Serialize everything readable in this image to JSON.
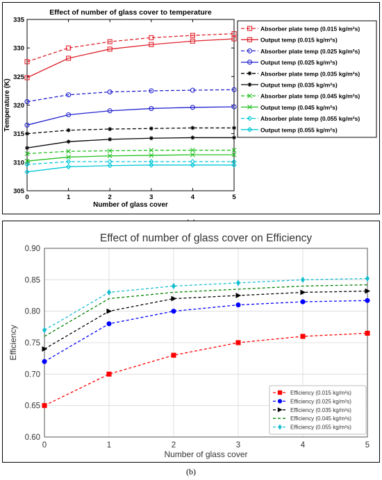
{
  "chart_data": [
    {
      "type": "line",
      "title": "Effect of number of glass cover to temperature",
      "xlabel": "Number of glass cover",
      "ylabel": "Temperature (K)",
      "xlim": [
        0,
        5
      ],
      "ylim": [
        305,
        335
      ],
      "x_ticks": [
        0,
        1,
        2,
        3,
        4,
        5
      ],
      "y_ticks": [
        305,
        310,
        315,
        320,
        325,
        330,
        335
      ],
      "grid": false,
      "legend_position": "top-right",
      "x": [
        0,
        1,
        2,
        3,
        4,
        5
      ],
      "series": [
        {
          "name": "Absorber plate temp (0.015 kg/m²s)",
          "color": "#e0202a",
          "dash": true,
          "marker": "square",
          "values": [
            327.6,
            330.0,
            331.1,
            331.8,
            332.2,
            332.5
          ]
        },
        {
          "name": "Output temp (0.015 kg/m²s)",
          "color": "#e0202a",
          "dash": false,
          "marker": "square",
          "values": [
            324.8,
            328.2,
            329.8,
            330.6,
            331.2,
            331.6
          ]
        },
        {
          "name": "Absorber plate temp (0.025 kg/m²s)",
          "color": "#2020d0",
          "dash": true,
          "marker": "circle",
          "values": [
            320.6,
            321.8,
            322.3,
            322.5,
            322.6,
            322.7
          ]
        },
        {
          "name": "Output temp (0.025 kg/m²s)",
          "color": "#2020d0",
          "dash": false,
          "marker": "circle",
          "values": [
            316.5,
            318.3,
            319.0,
            319.4,
            319.6,
            319.7
          ]
        },
        {
          "name": "Absorber plate temp (0.035 kg/m²s)",
          "color": "#000000",
          "dash": true,
          "marker": "star",
          "values": [
            315.0,
            315.6,
            315.8,
            315.9,
            316.0,
            316.0
          ]
        },
        {
          "name": "Output temp (0.035 kg/m²s)",
          "color": "#000000",
          "dash": false,
          "marker": "star",
          "values": [
            312.5,
            313.6,
            314.0,
            314.2,
            314.3,
            314.3
          ]
        },
        {
          "name": "Absorber plate temp (0.045 kg/m²s)",
          "color": "#20c020",
          "dash": true,
          "marker": "x",
          "values": [
            311.5,
            311.9,
            312.0,
            312.1,
            312.1,
            312.1
          ]
        },
        {
          "name": "Output temp (0.045 kg/m²s)",
          "color": "#20c020",
          "dash": false,
          "marker": "x",
          "values": [
            310.2,
            310.9,
            311.1,
            311.2,
            311.3,
            311.3
          ]
        },
        {
          "name": "Absorber plate temp (0.055 kg/m²s)",
          "color": "#00c8d8",
          "dash": true,
          "marker": "diamond",
          "values": [
            309.6,
            310.1,
            310.1,
            310.1,
            310.1,
            310.1
          ]
        },
        {
          "name": "Output temp (0.055 kg/m²s)",
          "color": "#00c8d8",
          "dash": false,
          "marker": "diamond",
          "values": [
            308.3,
            309.2,
            309.4,
            309.5,
            309.5,
            309.5
          ]
        }
      ]
    },
    {
      "type": "line",
      "title": "Effect of number of glass cover on Efficiency",
      "xlabel": "Number of glass cover",
      "ylabel": "Efficiency",
      "xlim": [
        0,
        5
      ],
      "ylim": [
        0.6,
        0.9
      ],
      "x_ticks": [
        0,
        1,
        2,
        3,
        4,
        5
      ],
      "y_ticks": [
        0.6,
        0.65,
        0.7,
        0.75,
        0.8,
        0.85,
        0.9
      ],
      "grid": true,
      "legend_position": "bottom-right",
      "x": [
        0,
        1,
        2,
        3,
        4,
        5
      ],
      "series": [
        {
          "name": "Efficiency (0.015 kg/m²s)",
          "color": "#ff0000",
          "dash": true,
          "marker": "square",
          "values": [
            0.65,
            0.7,
            0.73,
            0.75,
            0.76,
            0.765
          ]
        },
        {
          "name": "Efficiency (0.025 kg/m²s)",
          "color": "#0000ff",
          "dash": true,
          "marker": "circle",
          "values": [
            0.72,
            0.78,
            0.8,
            0.81,
            0.815,
            0.817
          ]
        },
        {
          "name": "Efficiency (0.035 kg/m²s)",
          "color": "#000000",
          "dash": true,
          "marker": "triangle-right",
          "values": [
            0.74,
            0.8,
            0.82,
            0.825,
            0.83,
            0.832
          ]
        },
        {
          "name": "Efficiency (0.045 kg/m²s)",
          "color": "#008000",
          "dash": true,
          "marker": "none",
          "values": [
            0.76,
            0.82,
            0.83,
            0.835,
            0.84,
            0.842
          ]
        },
        {
          "name": "Efficiency (0.055 kg/m²s)",
          "color": "#17becf",
          "dash": true,
          "marker": "plus",
          "values": [
            0.77,
            0.83,
            0.84,
            0.845,
            0.85,
            0.852
          ]
        }
      ]
    }
  ],
  "captions": [
    "(a)",
    "(b)"
  ]
}
